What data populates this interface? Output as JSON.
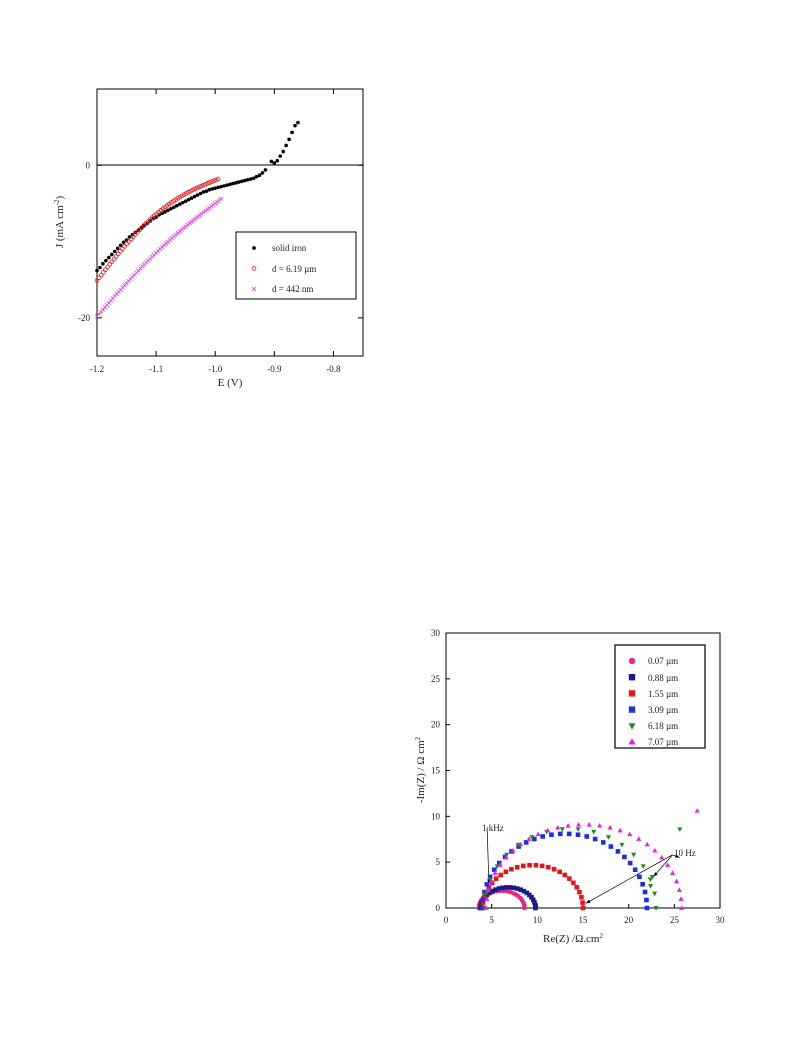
{
  "chart_data": [
    {
      "type": "scatter",
      "xlabel": "E (V)",
      "ylabel": "J (mA cm",
      "ylabel_sup": "-2",
      "ylabel_close": ")",
      "xlim": [
        -1.2,
        -0.75
      ],
      "ylim": [
        -25,
        10
      ],
      "x_ticks": [
        -1.2,
        -1.1,
        -1.0,
        -0.9,
        -0.8
      ],
      "x_tick_labels": [
        "-1.2",
        "-1.1",
        "-1.0",
        "-0.9",
        "-0.8"
      ],
      "y_ticks": [
        0,
        -20
      ],
      "y_tick_labels": [
        "0",
        "-20"
      ],
      "zero_line": true,
      "legend_position": "right",
      "series": [
        {
          "name": "solid iron",
          "marker": "filled-circle",
          "color": "#000000",
          "points": [
            [
              -1.2,
              -13.8
            ],
            [
              -1.195,
              -13.4
            ],
            [
              -1.19,
              -12.9
            ],
            [
              -1.185,
              -12.5
            ],
            [
              -1.18,
              -12.1
            ],
            [
              -1.175,
              -11.7
            ],
            [
              -1.17,
              -11.3
            ],
            [
              -1.165,
              -10.9
            ],
            [
              -1.16,
              -10.5
            ],
            [
              -1.155,
              -10.1
            ],
            [
              -1.15,
              -9.8
            ],
            [
              -1.145,
              -9.4
            ],
            [
              -1.14,
              -9.1
            ],
            [
              -1.135,
              -8.8
            ],
            [
              -1.13,
              -8.5
            ],
            [
              -1.125,
              -8.2
            ],
            [
              -1.12,
              -7.9
            ],
            [
              -1.115,
              -7.6
            ],
            [
              -1.11,
              -7.3
            ],
            [
              -1.105,
              -7.0
            ],
            [
              -1.1,
              -6.8
            ],
            [
              -1.095,
              -6.5
            ],
            [
              -1.09,
              -6.3
            ],
            [
              -1.085,
              -6.1
            ],
            [
              -1.08,
              -5.9
            ],
            [
              -1.075,
              -5.7
            ],
            [
              -1.07,
              -5.5
            ],
            [
              -1.065,
              -5.3
            ],
            [
              -1.06,
              -5.1
            ],
            [
              -1.055,
              -4.9
            ],
            [
              -1.05,
              -4.7
            ],
            [
              -1.045,
              -4.5
            ],
            [
              -1.04,
              -4.3
            ],
            [
              -1.035,
              -4.1
            ],
            [
              -1.03,
              -3.9
            ],
            [
              -1.025,
              -3.7
            ],
            [
              -1.02,
              -3.5
            ],
            [
              -1.015,
              -3.4
            ],
            [
              -1.01,
              -3.2
            ],
            [
              -1.005,
              -3.1
            ],
            [
              -1.0,
              -3.0
            ],
            [
              -0.995,
              -2.9
            ],
            [
              -0.99,
              -2.8
            ],
            [
              -0.985,
              -2.7
            ],
            [
              -0.98,
              -2.6
            ],
            [
              -0.975,
              -2.5
            ],
            [
              -0.97,
              -2.4
            ],
            [
              -0.965,
              -2.3
            ],
            [
              -0.96,
              -2.2
            ],
            [
              -0.955,
              -2.1
            ],
            [
              -0.95,
              -2.0
            ],
            [
              -0.945,
              -1.9
            ],
            [
              -0.94,
              -1.8
            ],
            [
              -0.935,
              -1.7
            ],
            [
              -0.93,
              -1.5
            ],
            [
              -0.925,
              -1.3
            ],
            [
              -0.92,
              -1.0
            ],
            [
              -0.915,
              -0.6
            ],
            [
              -0.905,
              0.5
            ],
            [
              -0.9,
              0.3
            ],
            [
              -0.895,
              0.6
            ],
            [
              -0.89,
              1.2
            ],
            [
              -0.885,
              1.8
            ],
            [
              -0.88,
              2.6
            ],
            [
              -0.875,
              3.4
            ],
            [
              -0.87,
              4.3
            ],
            [
              -0.865,
              5.2
            ],
            [
              -0.86,
              5.6
            ]
          ]
        },
        {
          "name": "d = 6.19 µm",
          "marker": "open-circle",
          "color": "#e41a1c",
          "x_start": -1.2,
          "x_end": -0.995,
          "y_start": -15.1,
          "y_end": -1.8,
          "curve": 2.2,
          "count": 58
        },
        {
          "name": "d = 442 nm",
          "marker": "cross",
          "color": "#e040e0",
          "x_start": -1.2,
          "x_end": -0.99,
          "y_start": -19.8,
          "y_end": -4.4,
          "curve": 1.0,
          "count": 64
        }
      ]
    },
    {
      "type": "scatter",
      "xlabel": "Re(Z) /Ω.cm",
      "xlabel_sup": "2",
      "ylabel": "-Im(Z) / Ω cm",
      "ylabel_sup": "2",
      "xlim": [
        0,
        30
      ],
      "ylim": [
        0,
        30
      ],
      "x_ticks": [
        0,
        5,
        10,
        15,
        20,
        25,
        30
      ],
      "x_tick_labels": [
        "0",
        "5",
        "10",
        "15",
        "20",
        "25",
        "30"
      ],
      "y_ticks": [
        0,
        5,
        10,
        15,
        20,
        25,
        30
      ],
      "y_tick_labels": [
        "0",
        "5",
        "10",
        "15",
        "20",
        "25",
        "30"
      ],
      "legend_position": "top-right",
      "annotations": [
        {
          "text": "1 kHz",
          "at": [
            4.5,
            8.8
          ],
          "to": [
            [
              4.7,
              2.6
            ]
          ]
        },
        {
          "text": "10 Hz",
          "at": [
            24.8,
            5.8
          ],
          "to": [
            [
              15.3,
              0.5
            ],
            [
              22.7,
              3.4
            ],
            [
              25.6,
              5.5
            ]
          ]
        }
      ],
      "series": [
        {
          "name": "0.07 µm",
          "marker": "circle",
          "color": "#e8238a",
          "arc": {
            "x0": 3.6,
            "x1": 8.6,
            "k": 0.75,
            "t_end": 1.0,
            "n": 22
          }
        },
        {
          "name": "0.88 µm",
          "marker": "square",
          "color": "#1a1a8c",
          "arc": {
            "x0": 3.8,
            "x1": 9.8,
            "k": 0.75,
            "t_end": 1.0,
            "n": 24
          }
        },
        {
          "name": "1.55 µm",
          "marker": "square",
          "color": "#e8141a",
          "arc": {
            "x0": 4.0,
            "x1": 15.0,
            "k": 0.85,
            "t_end": 1.0,
            "n": 26
          }
        },
        {
          "name": "3.09 µm",
          "marker": "square",
          "color": "#1e2ee6",
          "arc": {
            "x0": 4.0,
            "x1": 22.0,
            "k": 0.9,
            "t_end": 1.0,
            "n": 30
          }
        },
        {
          "name": "6.18 µm",
          "marker": "triangle-down",
          "color": "#1a8c1a",
          "arc": {
            "x0": 4.2,
            "x1": 23.0,
            "k": 0.92,
            "t_end": 1.0,
            "n": 18
          },
          "extra": [
            [
              22.4,
              2.4
            ],
            [
              22.6,
              3.4
            ],
            [
              25.6,
              8.6
            ]
          ]
        },
        {
          "name": "7.07 µm",
          "marker": "triangle-up",
          "color": "#e81ee6",
          "arc": {
            "x0": 4.4,
            "x1": 25.8,
            "k": 0.85,
            "t_end": 1.0,
            "n": 30
          },
          "extra": [
            [
              27.5,
              10.6
            ]
          ]
        }
      ]
    }
  ]
}
